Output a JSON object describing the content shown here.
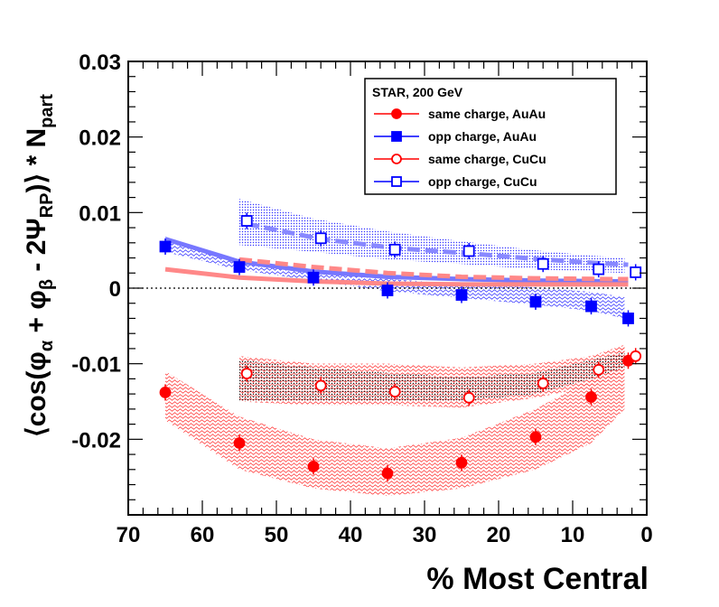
{
  "chart_data": {
    "type": "scatter",
    "title": "",
    "xlabel": "% Most Central",
    "ylabel": "⟨cos(φα + φβ - 2ΨRP)⟩ * Npart",
    "xlim": [
      70,
      0
    ],
    "ylim": [
      -0.03,
      0.03
    ],
    "x_ticks": [
      "70",
      "60",
      "50",
      "40",
      "30",
      "20",
      "10",
      "0"
    ],
    "y_ticks": [
      "0.03",
      "0.02",
      "0.01",
      "0",
      "-0.01",
      "-0.02"
    ],
    "legend": {
      "title": "STAR, 200 GeV",
      "position": "top-right"
    },
    "series": [
      {
        "name": "same charge, AuAu",
        "marker": "filled-circle",
        "color": "#ff0000",
        "x": [
          65,
          55,
          45,
          35,
          25,
          15,
          7.5,
          2.5
        ],
        "y": [
          -0.0138,
          -0.0205,
          -0.0236,
          -0.0245,
          -0.0231,
          -0.0197,
          -0.0144,
          -0.0096
        ]
      },
      {
        "name": "opp charge, AuAu",
        "marker": "filled-square",
        "color": "#0000ff",
        "x": [
          65,
          55,
          45,
          35,
          25,
          15,
          7.5,
          2.5
        ],
        "y": [
          0.0055,
          0.0028,
          0.0014,
          -0.0003,
          -0.0009,
          -0.0018,
          -0.0024,
          -0.004
        ]
      },
      {
        "name": "same charge, CuCu",
        "marker": "open-circle",
        "color": "#ff0000",
        "x": [
          54,
          44,
          34,
          24,
          14,
          6.5,
          1.5
        ],
        "y": [
          -0.0113,
          -0.0129,
          -0.0137,
          -0.0145,
          -0.0126,
          -0.0108,
          -0.009
        ]
      },
      {
        "name": "opp charge, CuCu",
        "marker": "open-square",
        "color": "#0000ff",
        "x": [
          54,
          44,
          34,
          24,
          14,
          6.5,
          1.5
        ],
        "y": [
          0.0089,
          0.0066,
          0.0051,
          0.0049,
          0.0032,
          0.0025,
          0.0021
        ]
      }
    ],
    "model_curves": [
      {
        "color": "#7777ff",
        "style": "solid",
        "x": [
          65,
          55,
          45,
          35,
          25,
          15,
          5,
          2.5
        ],
        "y": [
          0.0065,
          0.0035,
          0.0022,
          0.0015,
          0.0012,
          0.001,
          0.0009,
          0.0009
        ]
      },
      {
        "color": "#ff8888",
        "style": "solid",
        "x": [
          65,
          55,
          45,
          35,
          25,
          15,
          5,
          2.5
        ],
        "y": [
          0.0025,
          0.0014,
          0.0009,
          0.0006,
          0.0005,
          0.0005,
          0.0005,
          0.0005
        ]
      },
      {
        "color": "#ff8888",
        "style": "dashed",
        "x": [
          55,
          45,
          35,
          25,
          15,
          5,
          2.5
        ],
        "y": [
          0.0038,
          0.0028,
          0.002,
          0.0015,
          0.0013,
          0.0012,
          0.0012
        ]
      },
      {
        "color": "#8888ff",
        "style": "dashed",
        "x": [
          54,
          44,
          34,
          24,
          14,
          6.5,
          2.5
        ],
        "y": [
          0.0085,
          0.0065,
          0.0053,
          0.0046,
          0.0038,
          0.0033,
          0.0031
        ]
      }
    ],
    "bands": [
      {
        "color": "#ff3333",
        "pattern": "wavy",
        "x": [
          65,
          55,
          45,
          35,
          25,
          15,
          7.5,
          3
        ],
        "lo": [
          -0.0175,
          -0.024,
          -0.0265,
          -0.0275,
          -0.0265,
          -0.024,
          -0.0205,
          -0.016
        ],
        "hi": [
          -0.011,
          -0.017,
          -0.02,
          -0.0212,
          -0.0198,
          -0.016,
          -0.012,
          -0.0075
        ]
      },
      {
        "color": "#ff3333",
        "pattern": "wavy",
        "x": [
          55,
          45,
          35,
          25,
          15,
          7.5,
          3
        ],
        "lo": [
          -0.015,
          -0.0155,
          -0.0155,
          -0.0158,
          -0.0145,
          -0.013,
          -0.0115
        ],
        "hi": [
          -0.009,
          -0.01,
          -0.01,
          -0.0105,
          -0.01,
          -0.009,
          -0.0075
        ]
      },
      {
        "color": "#222222",
        "pattern": "dots",
        "x": [
          55,
          45,
          35,
          25,
          15,
          7.5,
          3
        ],
        "lo": [
          -0.015,
          -0.015,
          -0.015,
          -0.015,
          -0.014,
          -0.012,
          -0.0105
        ],
        "hi": [
          -0.0095,
          -0.0105,
          -0.0112,
          -0.0118,
          -0.0112,
          -0.0095,
          -0.0085
        ]
      },
      {
        "color": "#3333ff",
        "pattern": "dots",
        "x": [
          55,
          45,
          35,
          25,
          15,
          7.5,
          3
        ],
        "lo": [
          0.0057,
          0.0048,
          0.0038,
          0.0032,
          0.0025,
          0.0022,
          0.002
        ],
        "hi": [
          0.0118,
          0.0092,
          0.0075,
          0.0062,
          0.005,
          0.0043,
          0.004
        ]
      },
      {
        "color": "#3333ff",
        "pattern": "wavy",
        "x": [
          65,
          55,
          45,
          35,
          25,
          15,
          7.5,
          3
        ],
        "lo": [
          0.0048,
          0.0024,
          0.001,
          -0.0004,
          -0.0013,
          -0.0022,
          -0.003,
          -0.004
        ],
        "hi": [
          0.0068,
          0.0037,
          0.0023,
          0.0012,
          0.0006,
          0.0001,
          -0.0005,
          -0.0012
        ]
      }
    ]
  }
}
